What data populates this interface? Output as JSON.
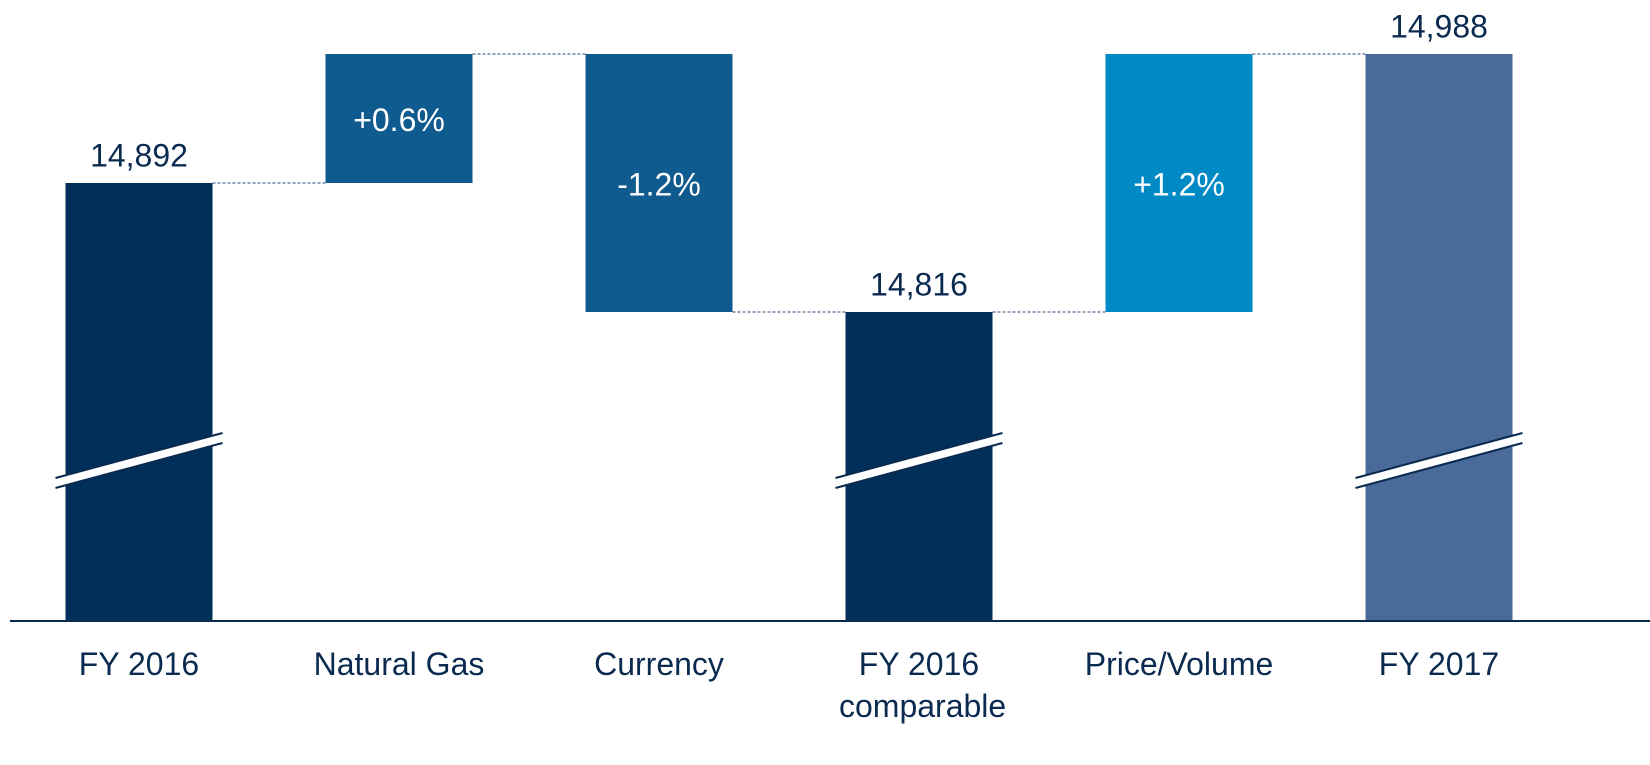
{
  "chart_data": {
    "type": "waterfall",
    "categories": [
      "FY 2016",
      "Natural Gas",
      "Currency",
      "FY 2016 comparable",
      "Price/Volume",
      "FY 2017"
    ],
    "values": [
      14892,
      0.6,
      -1.2,
      14816,
      1.2,
      14988
    ],
    "value_labels": [
      "14,892",
      "+0.6%",
      "-1.2%",
      "14,816",
      "+1.2%",
      "14,988"
    ],
    "measure": [
      "total",
      "relative",
      "relative",
      "total",
      "relative",
      "total"
    ],
    "colors": [
      "#002f5a",
      "#0f5a8f",
      "#0f5a8f",
      "#002f5a",
      "#008ac5",
      "#4a6b9a"
    ]
  }
}
